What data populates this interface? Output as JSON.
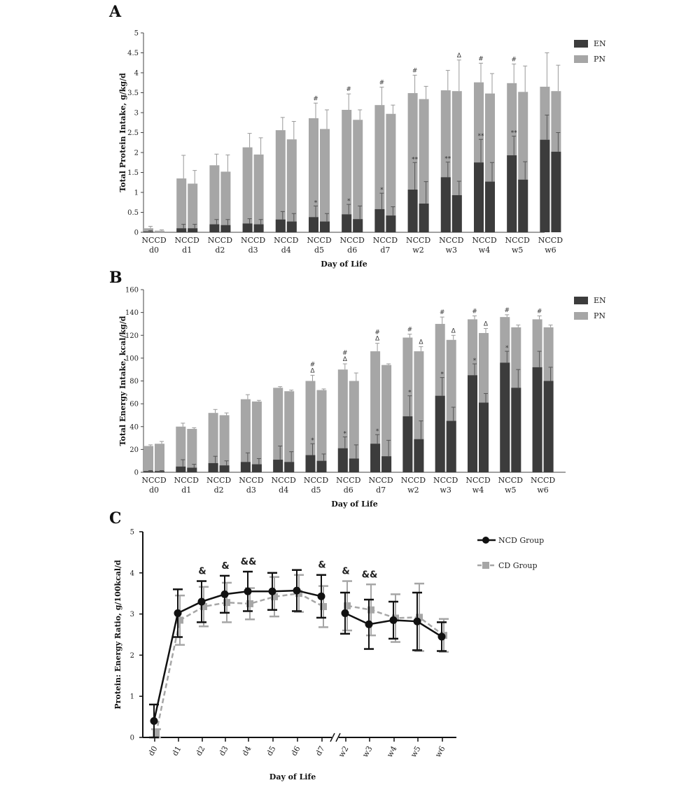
{
  "colors": {
    "EN": "#3c3c3c",
    "PN": "#a6a6a6",
    "NCD": "#111111",
    "CD": "#a6a6a6"
  },
  "chart_data": [
    {
      "panel": "A",
      "type": "bar",
      "stacked": true,
      "ylabel": "Total Protein Intake, g/kg/d",
      "xlabel": "Day of Life",
      "ylim": [
        0,
        5
      ],
      "yticks": [
        "0",
        "0.5",
        "1",
        "1.5",
        "2",
        "2.5",
        "3",
        "3.5",
        "4",
        "4.5",
        "5"
      ],
      "categories": [
        "d0",
        "d1",
        "d2",
        "d3",
        "d4",
        "d5",
        "d6",
        "d7",
        "w2",
        "w3",
        "w4",
        "w5",
        "w6"
      ],
      "bar_labels": [
        "NC",
        "CD"
      ],
      "legend": [
        {
          "label": "EN",
          "color_key": "EN"
        },
        {
          "label": "PN",
          "color_key": "PN"
        }
      ],
      "NC": {
        "EN_values": [
          0.02,
          0.1,
          0.2,
          0.22,
          0.32,
          0.38,
          0.45,
          0.58,
          1.07,
          1.38,
          1.75,
          1.93,
          2.32
        ],
        "EN_err": [
          0.02,
          0.1,
          0.12,
          0.12,
          0.2,
          0.28,
          0.25,
          0.4,
          0.68,
          0.38,
          0.58,
          0.48,
          0.62
        ],
        "total": [
          0.1,
          1.35,
          1.68,
          2.13,
          2.56,
          2.86,
          3.07,
          3.19,
          3.49,
          3.56,
          3.76,
          3.74,
          3.65
        ],
        "total_err": [
          0.05,
          0.58,
          0.28,
          0.35,
          0.32,
          0.38,
          0.4,
          0.45,
          0.45,
          0.5,
          0.48,
          0.48,
          0.85
        ],
        "total_marks": [
          "",
          "",
          "",
          "",
          "",
          "#",
          "#",
          "#",
          "#",
          "",
          "#",
          "#",
          ""
        ],
        "EN_marks": [
          "",
          "",
          "",
          "",
          "",
          "*",
          "*",
          "*",
          "**",
          "**",
          "**",
          "**",
          ""
        ]
      },
      "CD": {
        "EN_values": [
          0.0,
          0.1,
          0.18,
          0.2,
          0.27,
          0.27,
          0.33,
          0.42,
          0.72,
          0.93,
          1.27,
          1.32,
          2.02
        ],
        "EN_err": [
          0.0,
          0.1,
          0.14,
          0.12,
          0.2,
          0.2,
          0.33,
          0.22,
          0.55,
          0.35,
          0.48,
          0.45,
          0.48
        ],
        "total": [
          0.04,
          1.22,
          1.52,
          1.95,
          2.33,
          2.59,
          2.82,
          2.97,
          3.34,
          3.54,
          3.48,
          3.52,
          3.54
        ],
        "total_err": [
          0.02,
          0.33,
          0.42,
          0.42,
          0.45,
          0.48,
          0.25,
          0.22,
          0.32,
          0.78,
          0.5,
          0.65,
          0.65
        ],
        "total_marks": [
          "",
          "",
          "",
          "",
          "",
          "",
          "",
          "",
          "",
          "Δ",
          "",
          "",
          ""
        ]
      }
    },
    {
      "panel": "B",
      "type": "bar",
      "stacked": true,
      "ylabel": "Total Energy Intake, kcal/kg/d",
      "xlabel": "Day of Life",
      "ylim": [
        0,
        160
      ],
      "yticks": [
        "0",
        "20",
        "40",
        "60",
        "80",
        "100",
        "120",
        "140",
        "160"
      ],
      "categories": [
        "d0",
        "d1",
        "d2",
        "d3",
        "d4",
        "d5",
        "d6",
        "d7",
        "w2",
        "w3",
        "w4",
        "w5",
        "w6"
      ],
      "bar_labels": [
        "NC",
        "CD"
      ],
      "legend": [
        {
          "label": "EN",
          "color_key": "EN"
        },
        {
          "label": "PN",
          "color_key": "PN"
        }
      ],
      "NC": {
        "EN_values": [
          1,
          5,
          8,
          9,
          11,
          15,
          21,
          25,
          49,
          67,
          85,
          96,
          92
        ],
        "EN_err": [
          0.5,
          6,
          6,
          8,
          12,
          10,
          10,
          8,
          18,
          16,
          10,
          10,
          14
        ],
        "total": [
          23,
          40,
          52,
          64,
          74,
          80,
          90,
          106,
          118,
          130,
          134,
          136,
          134
        ],
        "total_err": [
          1,
          3,
          3,
          4,
          1,
          5,
          5,
          7,
          3,
          6,
          3,
          2,
          3
        ],
        "total_marks": [
          "",
          "",
          "",
          "",
          "",
          "#",
          "#",
          "#",
          "#",
          "#",
          "#",
          "#",
          "#"
        ],
        "total_marks2": [
          "",
          "",
          "",
          "",
          "",
          "Δ",
          "Δ",
          "Δ",
          "",
          "",
          "",
          "",
          ""
        ],
        "EN_marks": [
          "",
          "",
          "",
          "",
          "",
          "*",
          "*",
          "*",
          "*",
          "*",
          "*",
          "*",
          ""
        ]
      },
      "CD": {
        "EN_values": [
          1,
          4,
          6,
          7,
          9,
          10,
          12,
          14,
          29,
          45,
          61,
          74,
          80
        ],
        "EN_err": [
          0.5,
          3,
          4,
          5,
          9,
          6,
          12,
          14,
          16,
          12,
          8,
          16,
          12
        ],
        "total": [
          25,
          38,
          50,
          62,
          71,
          72,
          80,
          94,
          106,
          116,
          122,
          127,
          127
        ],
        "total_err": [
          2,
          1,
          2,
          1,
          1,
          1,
          7,
          1,
          4,
          4,
          4,
          2,
          2
        ],
        "total_marks": [
          "",
          "",
          "",
          "",
          "",
          "",
          "",
          "",
          "Δ",
          "Δ",
          "Δ",
          "",
          ""
        ]
      }
    },
    {
      "panel": "C",
      "type": "line",
      "ylabel": "Protein: Energy Ratio, g/100kcal/d",
      "xlabel": "Day of Life",
      "ylim": [
        0,
        5
      ],
      "yticks": [
        "0",
        "1",
        "2",
        "3",
        "4",
        "5"
      ],
      "categories": [
        "d0",
        "d1",
        "d2",
        "d3",
        "d4",
        "d5",
        "d6",
        "d7",
        "w2",
        "w3",
        "w4",
        "w5",
        "w6"
      ],
      "series": [
        {
          "name": "NCD Group",
          "color_key": "NCD",
          "dashed": false,
          "marker": "circle",
          "values": [
            0.4,
            3.02,
            3.3,
            3.48,
            3.55,
            3.55,
            3.57,
            3.43,
            3.02,
            2.75,
            2.85,
            2.82,
            2.45
          ],
          "err": [
            0.4,
            0.58,
            0.5,
            0.45,
            0.48,
            0.45,
            0.5,
            0.52,
            0.5,
            0.6,
            0.45,
            0.7,
            0.35
          ]
        },
        {
          "name": "CD Group",
          "color_key": "CD",
          "dashed": true,
          "marker": "square",
          "values": [
            0.1,
            2.85,
            3.18,
            3.28,
            3.25,
            3.42,
            3.5,
            3.18,
            3.2,
            3.1,
            2.9,
            2.92,
            2.48
          ],
          "err": [
            0.1,
            0.6,
            0.48,
            0.48,
            0.38,
            0.48,
            0.45,
            0.5,
            0.6,
            0.62,
            0.58,
            0.82,
            0.4
          ]
        }
      ],
      "marks": [
        "",
        "",
        "&",
        "&",
        "&&",
        "",
        "",
        "&",
        "&",
        "&&",
        "",
        "",
        ""
      ],
      "axis_break_after": "d7"
    }
  ],
  "panels": {
    "A": "A",
    "B": "B",
    "C": "C"
  }
}
